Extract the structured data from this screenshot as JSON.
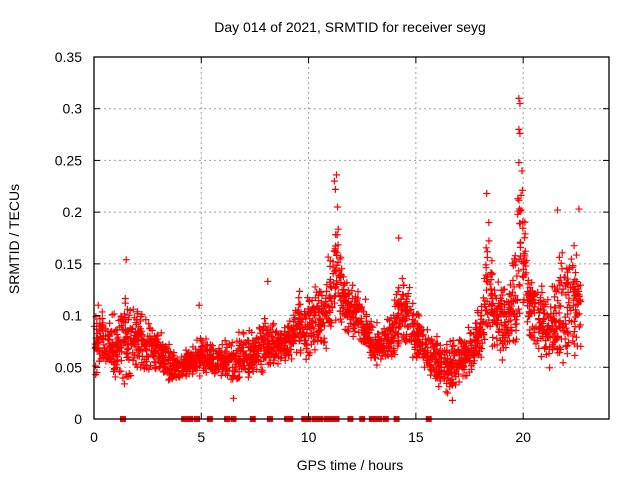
{
  "chart_data": {
    "type": "scatter",
    "title": "Day 014 of 2021, SRMTID for receiver seyg",
    "xlabel": "GPS time / hours",
    "ylabel": "SRMTID / TECUs",
    "xlim": [
      0,
      24
    ],
    "ylim": [
      0,
      0.35
    ],
    "xticks": [
      0,
      5,
      10,
      15,
      20
    ],
    "xtick_labels": [
      "0",
      "5",
      "10",
      "15",
      "20"
    ],
    "yticks": [
      0,
      0.05,
      0.1,
      0.15,
      0.2,
      0.25,
      0.3,
      0.35
    ],
    "ytick_labels": [
      "0",
      "0.05",
      "0.1",
      "0.15",
      "0.2",
      "0.25",
      "0.3",
      "0.35"
    ],
    "grid": true,
    "legend": "none",
    "series": [
      {
        "name": "SRMTID",
        "marker": "plus",
        "color": "#ff0000",
        "envelope": [
          [
            0.0,
            0.03,
            0.14
          ],
          [
            0.5,
            0.05,
            0.11
          ],
          [
            1.0,
            0.03,
            0.11
          ],
          [
            1.4,
            0.03,
            0.15
          ],
          [
            2.0,
            0.04,
            0.13
          ],
          [
            2.5,
            0.04,
            0.11
          ],
          [
            3.0,
            0.04,
            0.1
          ],
          [
            3.5,
            0.03,
            0.08
          ],
          [
            4.0,
            0.03,
            0.07
          ],
          [
            4.5,
            0.04,
            0.08
          ],
          [
            5.0,
            0.04,
            0.09
          ],
          [
            5.5,
            0.04,
            0.08
          ],
          [
            6.0,
            0.04,
            0.08
          ],
          [
            6.5,
            0.03,
            0.09
          ],
          [
            7.0,
            0.03,
            0.1
          ],
          [
            7.5,
            0.04,
            0.1
          ],
          [
            8.0,
            0.04,
            0.11
          ],
          [
            8.5,
            0.05,
            0.1
          ],
          [
            9.0,
            0.05,
            0.1
          ],
          [
            9.5,
            0.06,
            0.13
          ],
          [
            10.0,
            0.05,
            0.14
          ],
          [
            10.5,
            0.06,
            0.15
          ],
          [
            11.0,
            0.07,
            0.17
          ],
          [
            11.3,
            0.09,
            0.235
          ],
          [
            11.6,
            0.08,
            0.16
          ],
          [
            12.0,
            0.07,
            0.15
          ],
          [
            12.5,
            0.06,
            0.14
          ],
          [
            13.0,
            0.05,
            0.1
          ],
          [
            13.5,
            0.05,
            0.1
          ],
          [
            14.0,
            0.05,
            0.13
          ],
          [
            14.3,
            0.07,
            0.175
          ],
          [
            14.7,
            0.06,
            0.14
          ],
          [
            15.0,
            0.05,
            0.12
          ],
          [
            15.5,
            0.04,
            0.1
          ],
          [
            16.0,
            0.03,
            0.09
          ],
          [
            16.5,
            0.02,
            0.09
          ],
          [
            17.0,
            0.03,
            0.09
          ],
          [
            17.5,
            0.04,
            0.1
          ],
          [
            18.0,
            0.05,
            0.13
          ],
          [
            18.3,
            0.06,
            0.22
          ],
          [
            18.7,
            0.06,
            0.16
          ],
          [
            19.2,
            0.05,
            0.15
          ],
          [
            19.7,
            0.05,
            0.2
          ],
          [
            19.9,
            0.1,
            0.31
          ],
          [
            20.3,
            0.06,
            0.16
          ],
          [
            20.8,
            0.05,
            0.15
          ],
          [
            21.2,
            0.04,
            0.14
          ],
          [
            21.6,
            0.03,
            0.2
          ],
          [
            22.0,
            0.04,
            0.18
          ],
          [
            22.4,
            0.05,
            0.2
          ],
          [
            22.7,
            0.05,
            0.2
          ]
        ],
        "outliers": [
          [
            1.5,
            0.154
          ],
          [
            8.1,
            0.133
          ],
          [
            11.2,
            0.23
          ],
          [
            11.3,
            0.236
          ],
          [
            11.25,
            0.222
          ],
          [
            11.35,
            0.205
          ],
          [
            19.8,
            0.31
          ],
          [
            19.85,
            0.305
          ],
          [
            19.8,
            0.28
          ],
          [
            19.85,
            0.276
          ],
          [
            19.8,
            0.248
          ],
          [
            19.75,
            0.213
          ],
          [
            18.3,
            0.218
          ],
          [
            14.2,
            0.175
          ],
          [
            22.6,
            0.203
          ],
          [
            21.6,
            0.202
          ],
          [
            18.4,
            0.19
          ],
          [
            6.5,
            0.02
          ],
          [
            16.7,
            0.018
          ],
          [
            4.9,
            0.11
          ]
        ]
      },
      {
        "name": "flags",
        "marker": "square",
        "color": "#ff0000",
        "x": [
          1.35,
          4.2,
          4.35,
          4.5,
          4.8,
          5.4,
          6.2,
          6.5,
          7.4,
          8.2,
          9.0,
          9.15,
          9.8,
          10.0,
          10.3,
          10.55,
          10.85,
          10.95,
          11.1,
          11.3,
          11.95,
          12.5,
          12.95,
          13.15,
          13.3,
          13.6,
          14.1,
          15.6
        ]
      }
    ]
  }
}
